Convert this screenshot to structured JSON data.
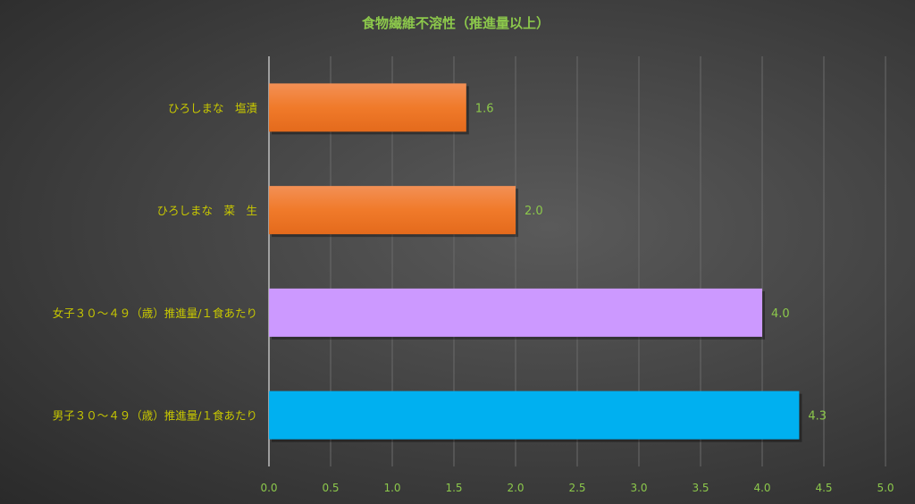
{
  "chart_data": {
    "type": "bar",
    "orientation": "horizontal",
    "title": "食物繊維不溶性（推進量以上）",
    "categories": [
      "ひろしまな　塩漬",
      "ひろしまな　菜　生",
      "女子３０～４９（歳）推進量/１食あたり",
      "男子３０～４９（歳）推進量/１食あたり"
    ],
    "values": [
      1.6,
      2.0,
      4.0,
      4.3
    ],
    "data_labels": [
      "1.6",
      "2.0",
      "4.0",
      "4.3"
    ],
    "bar_colors": [
      "#f07a2e",
      "#f07a2e",
      "#cc99ff",
      "#00b0f0"
    ],
    "xlim": [
      0,
      5.0
    ],
    "x_ticks": [
      "0.0",
      "0.5",
      "1.0",
      "1.5",
      "2.0",
      "2.5",
      "3.0",
      "3.5",
      "4.0",
      "4.5",
      "5.0"
    ],
    "grid": "vertical",
    "legend": "none",
    "colors": {
      "title": "#8cc84b",
      "category_labels": "#c8c800",
      "tick_labels": "#8cc84b",
      "data_labels": "#8cc84b"
    }
  }
}
